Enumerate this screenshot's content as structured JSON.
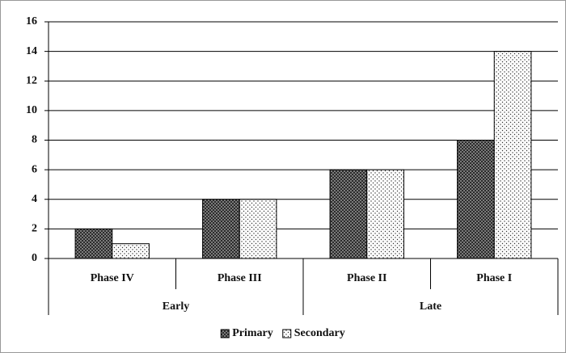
{
  "chart_data": {
    "type": "bar",
    "categories": [
      "Phase IV",
      "Phase III",
      "Phase II",
      "Phase I"
    ],
    "groups": [
      "Early",
      "Late"
    ],
    "series": [
      {
        "name": "Primary",
        "color": "#555555",
        "pattern": "crosshatch",
        "values": [
          2,
          4,
          6,
          8
        ]
      },
      {
        "name": "Secondary",
        "color": "#ffffff",
        "pattern": "dots",
        "values": [
          1,
          4,
          6,
          14
        ]
      }
    ],
    "ylim": [
      0,
      16
    ],
    "yticks": [
      0,
      2,
      4,
      6,
      8,
      10,
      12,
      14,
      16
    ],
    "grid": true,
    "legend": "bottom"
  }
}
